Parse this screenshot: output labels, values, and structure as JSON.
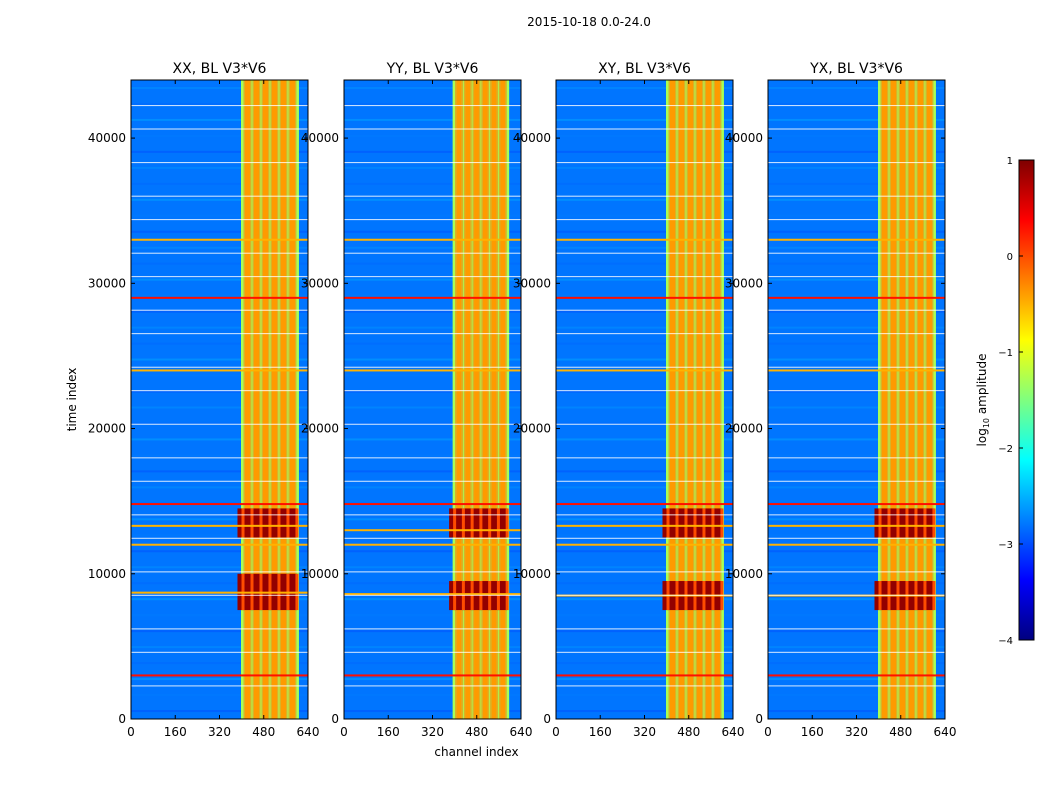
{
  "figure": {
    "suptitle": "2015-10-18 0.0-24.0"
  },
  "colorbar": {
    "label": "log10 amplitude",
    "label_prefix": "log",
    "label_sub": "10",
    "label_suffix": " amplitude",
    "range": [
      -4,
      1
    ],
    "ticks": [
      1,
      0,
      -1,
      -2,
      -3,
      -4
    ],
    "tick_labels": [
      "1",
      "0",
      "−1",
      "−2",
      "−3",
      "−4"
    ],
    "colormap": "jet",
    "colormap_colors": [
      "#00007f",
      "#0000ff",
      "#007fff",
      "#00ffff",
      "#7fff7f",
      "#ffff00",
      "#ff7f00",
      "#ff0000",
      "#7f0000"
    ]
  },
  "chart_data": [
    {
      "type": "heatmap",
      "title": "XX, BL V3*V6",
      "xlabel": "",
      "ylabel": "time index",
      "xlim": [
        0,
        640
      ],
      "ylim": [
        0,
        44000
      ],
      "xticks": [
        "0",
        "160",
        "320",
        "480",
        "640"
      ],
      "yticks": [
        "0",
        "10000",
        "20000",
        "30000",
        "40000"
      ],
      "background_log10_amplitude": -2.8,
      "band_channels": [
        405,
        600
      ],
      "band_log10_amplitude": -0.6,
      "bright_band_time_ranges": [
        [
          7500,
          10000
        ],
        [
          12500,
          14500
        ]
      ],
      "bright_band_log10_amplitude": 0.9,
      "horizontal_flag_times": [
        29000,
        24000,
        33000,
        14800,
        12000,
        8700,
        3000,
        13300
      ]
    },
    {
      "type": "heatmap",
      "title": "YY, BL V3*V6",
      "xlabel": "channel index",
      "ylabel": "",
      "xlim": [
        0,
        640
      ],
      "ylim": [
        0,
        44000
      ],
      "xticks": [
        "0",
        "160",
        "320",
        "480",
        "640"
      ],
      "yticks": [
        "0",
        "10000",
        "20000",
        "30000",
        "40000"
      ],
      "background_log10_amplitude": -2.8,
      "band_channels": [
        400,
        590
      ],
      "band_log10_amplitude": -0.6,
      "bright_band_time_ranges": [
        [
          7500,
          9500
        ],
        [
          12500,
          14500
        ]
      ],
      "bright_band_log10_amplitude": 0.9,
      "horizontal_flag_times": [
        29000,
        24000,
        33000,
        14800,
        12000,
        8600,
        3000,
        13000
      ]
    },
    {
      "type": "heatmap",
      "title": "XY, BL V3*V6",
      "xlabel": "",
      "ylabel": "",
      "xlim": [
        0,
        640
      ],
      "ylim": [
        0,
        44000
      ],
      "xticks": [
        "0",
        "160",
        "320",
        "480",
        "640"
      ],
      "yticks": [
        "0",
        "10000",
        "20000",
        "30000",
        "40000"
      ],
      "background_log10_amplitude": -2.8,
      "band_channels": [
        405,
        600
      ],
      "band_log10_amplitude": -0.6,
      "bright_band_time_ranges": [
        [
          7500,
          9500
        ],
        [
          12500,
          14500
        ]
      ],
      "bright_band_log10_amplitude": 0.9,
      "horizontal_flag_times": [
        29000,
        24000,
        33000,
        14800,
        12000,
        8500,
        3000,
        13300
      ]
    },
    {
      "type": "heatmap",
      "title": "YX, BL V3*V6",
      "xlabel": "",
      "ylabel": "",
      "xlim": [
        0,
        640
      ],
      "ylim": [
        0,
        44000
      ],
      "xticks": [
        "0",
        "160",
        "320",
        "480",
        "640"
      ],
      "yticks": [
        "0",
        "10000",
        "20000",
        "30000",
        "40000"
      ],
      "background_log10_amplitude": -2.8,
      "band_channels": [
        405,
        600
      ],
      "band_log10_amplitude": -0.6,
      "bright_band_time_ranges": [
        [
          7500,
          9500
        ],
        [
          12500,
          14500
        ]
      ],
      "bright_band_log10_amplitude": 0.9,
      "horizontal_flag_times": [
        29000,
        24000,
        33000,
        14800,
        12000,
        8500,
        3000,
        13300
      ]
    }
  ]
}
